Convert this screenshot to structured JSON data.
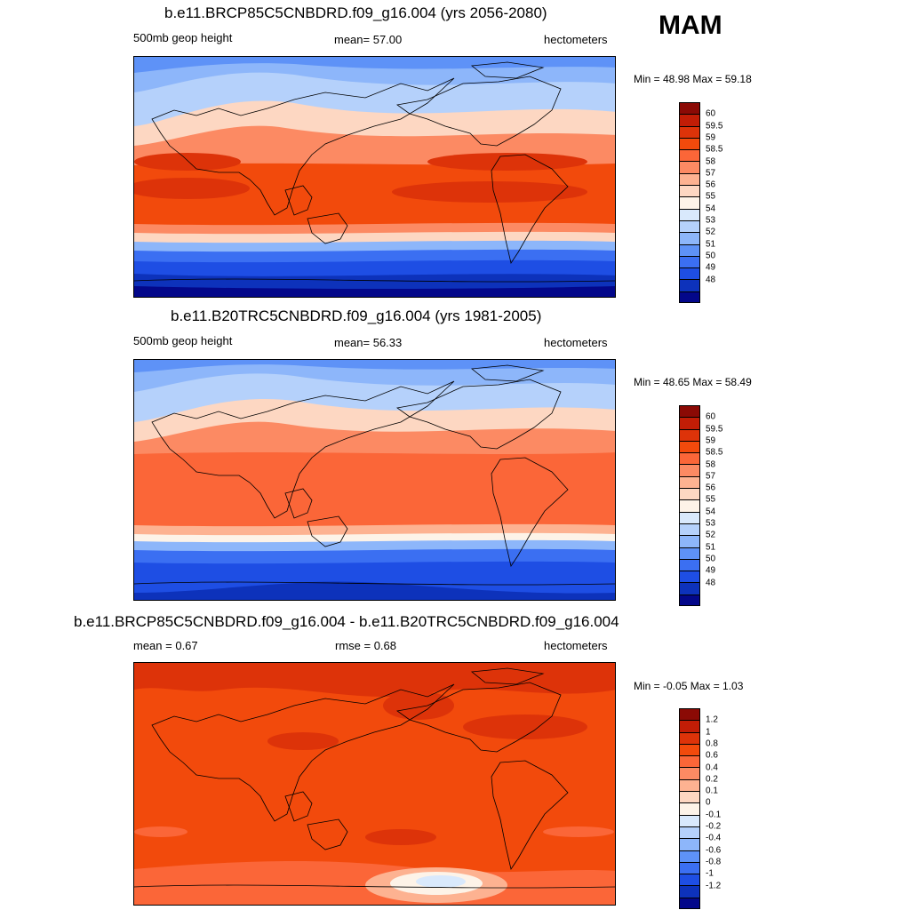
{
  "season": "MAM",
  "panels": [
    {
      "title": "b.e11.BRCP85C5CNBDRD.f09_g16.004 (yrs 2056-2080)",
      "left_text": "500mb geop height",
      "center_text": "mean=  57.00",
      "right_text": "hectometers",
      "minmax": "Min =  48.98 Max =  59.18",
      "colorbar": {
        "colors": [
          "#8b0a05",
          "#c21d06",
          "#dd3309",
          "#f24a0c",
          "#fb6638",
          "#fc8a63",
          "#fdb291",
          "#fdd7c2",
          "#fdf3e8",
          "#d9e9fc",
          "#b5d1fb",
          "#8db6fa",
          "#5e92f7",
          "#3b6ff2",
          "#1e4ee4",
          "#0d32bb",
          "#03078a"
        ],
        "labels": [
          "60",
          "59.5",
          "59",
          "58.5",
          "58",
          "57",
          "56",
          "55",
          "54",
          "53",
          "52",
          "51",
          "50",
          "49",
          "48"
        ]
      }
    },
    {
      "title": "b.e11.B20TRC5CNBDRD.f09_g16.004 (yrs 1981-2005)",
      "left_text": "500mb geop height",
      "center_text": "mean=  56.33",
      "right_text": "hectometers",
      "minmax": "Min =  48.65 Max =  58.49",
      "colorbar": {
        "colors": [
          "#8b0a05",
          "#c21d06",
          "#dd3309",
          "#f24a0c",
          "#fb6638",
          "#fc8a63",
          "#fdb291",
          "#fdd7c2",
          "#fdf3e8",
          "#d9e9fc",
          "#b5d1fb",
          "#8db6fa",
          "#5e92f7",
          "#3b6ff2",
          "#1e4ee4",
          "#0d32bb",
          "#03078a"
        ],
        "labels": [
          "60",
          "59.5",
          "59",
          "58.5",
          "58",
          "57",
          "56",
          "55",
          "54",
          "53",
          "52",
          "51",
          "50",
          "49",
          "48"
        ]
      }
    },
    {
      "title": "b.e11.BRCP85C5CNBDRD.f09_g16.004 - b.e11.B20TRC5CNBDRD.f09_g16.004",
      "left_text": "mean =   0.67",
      "center_text": "rmse =   0.68",
      "right_text": "hectometers",
      "minmax": "Min =  -0.05 Max =   1.03",
      "colorbar": {
        "colors": [
          "#8b0a05",
          "#c21d06",
          "#dd3309",
          "#f24a0c",
          "#fb6638",
          "#fc8a63",
          "#fdb291",
          "#fdd7c2",
          "#fdf3e8",
          "#d9e9fc",
          "#b5d1fb",
          "#8db6fa",
          "#5e92f7",
          "#3b6ff2",
          "#1e4ee4",
          "#0d32bb",
          "#03078a"
        ],
        "labels": [
          "1.2",
          "1",
          "0.8",
          "0.6",
          "0.4",
          "0.2",
          "0.1",
          "0",
          "-0.1",
          "-0.2",
          "-0.4",
          "-0.6",
          "-0.8",
          "-1",
          "-1.2"
        ]
      }
    }
  ]
}
